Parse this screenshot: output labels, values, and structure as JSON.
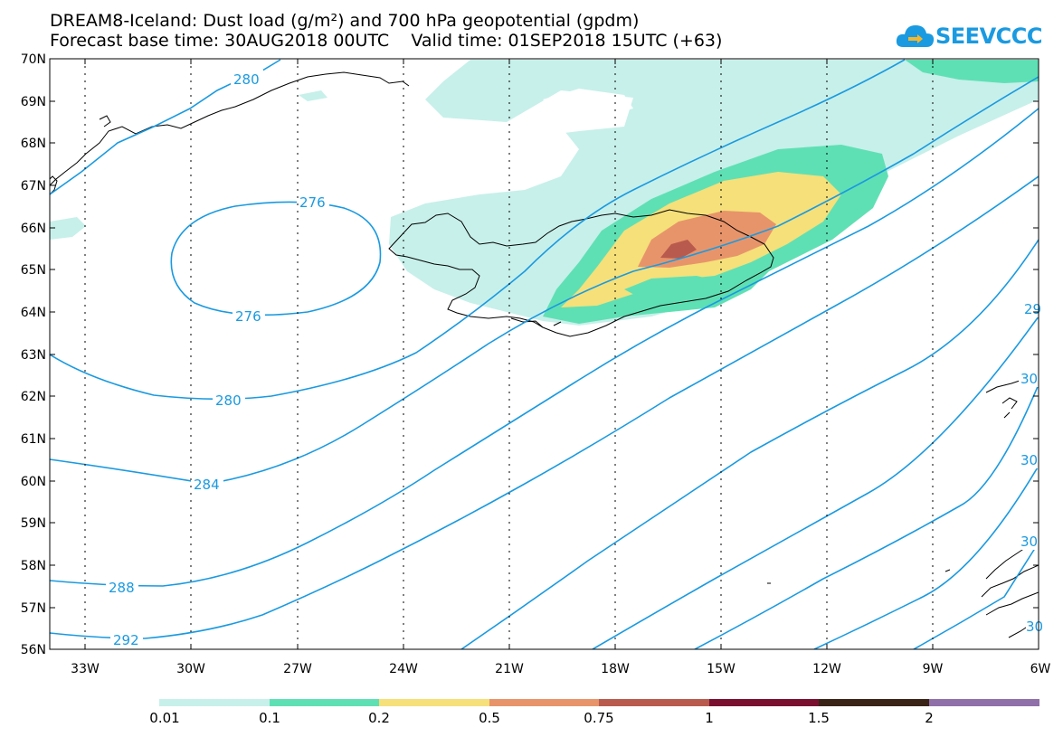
{
  "title_line1": "DREAM8-Iceland: Dust load (g/m²) and 700 hPa geopotential (gpdm)",
  "title_line2": "Forecast base time: 30AUG2018 00UTC    Valid time: 01SEP2018 15UTC (+63)",
  "logo": {
    "text": "SEEVCCC",
    "icon": "cloud-icon"
  },
  "axes": {
    "lat_labels": [
      "70N",
      "69N",
      "68N",
      "67N",
      "66N",
      "65N",
      "64N",
      "63N",
      "62N",
      "61N",
      "60N",
      "59N",
      "58N",
      "57N",
      "56N"
    ],
    "lon_labels": [
      "33W",
      "30W",
      "27W",
      "24W",
      "21W",
      "18W",
      "15W",
      "12W",
      "9W",
      "6W"
    ]
  },
  "contours": {
    "labels": [
      "280",
      "276",
      "276",
      "280",
      "284",
      "288",
      "292",
      "29",
      "30",
      "30",
      "30",
      "30"
    ],
    "color": "#1a9ae0"
  },
  "dust_levels": {
    "colors": [
      "#c7f0ea",
      "#5fe0b4",
      "#f5e07a",
      "#e8946a",
      "#b85a4e",
      "#7a1030",
      "#3a2418",
      "#9070a8"
    ],
    "labels": [
      "0.01",
      "0.1",
      "0.2",
      "0.5",
      "0.75",
      "1",
      "1.5",
      "2"
    ]
  }
}
